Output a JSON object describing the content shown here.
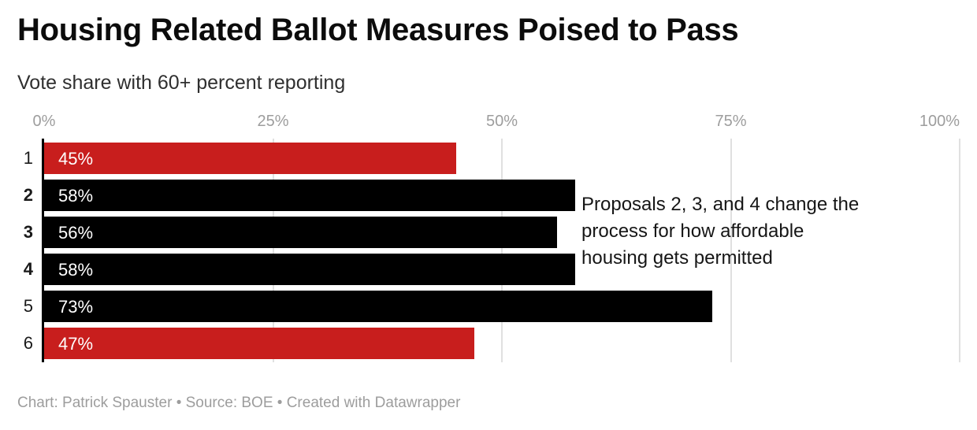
{
  "chart_data": {
    "type": "bar",
    "orientation": "horizontal",
    "title": "Housing Related Ballot Measures Poised to Pass",
    "subtitle": "Vote share with 60+ percent reporting",
    "categories": [
      "1",
      "2",
      "3",
      "4",
      "5",
      "6"
    ],
    "values": [
      45,
      58,
      56,
      58,
      73,
      47
    ],
    "value_labels": [
      "45%",
      "58%",
      "56%",
      "58%",
      "73%",
      "47%"
    ],
    "bar_colors": [
      "#c81e1d",
      "#000000",
      "#000000",
      "#000000",
      "#000000",
      "#c81e1d"
    ],
    "bold_category_flags": [
      false,
      true,
      true,
      true,
      false,
      false
    ],
    "xlim": [
      0,
      100
    ],
    "x_ticks": [
      {
        "label": "0%",
        "value": 0
      },
      {
        "label": "25%",
        "value": 25
      },
      {
        "label": "50%",
        "value": 50
      },
      {
        "label": "75%",
        "value": 75
      },
      {
        "label": "100%",
        "value": 100
      }
    ],
    "grid": "vertical-gridlines-on",
    "legend": "none",
    "annotation_lines": [
      "Proposals 2, 3, and 4 change the",
      "process for how affordable",
      "housing gets permitted"
    ],
    "footer": "Chart: Patrick Spauster • Source: BOE • Created with Datawrapper"
  },
  "colors": {
    "accent_red": "#c81e1d",
    "bar_black": "#000000",
    "axis_label_gray": "#9d9d9d",
    "gridline_gray": "#e0e0e0",
    "footer_gray": "#9d9d9d",
    "background": "#ffffff"
  }
}
